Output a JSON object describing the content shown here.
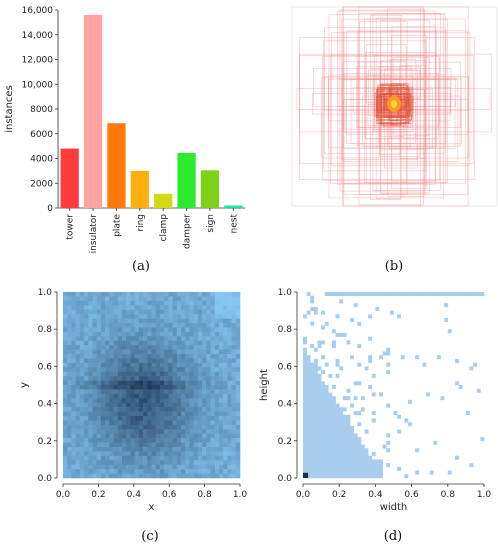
{
  "colors": {
    "bars": [
      "#ff3b3b",
      "#ffa3a3",
      "#ff7a0a",
      "#ffae0f",
      "#d4d817",
      "#2eea2e",
      "#7ed31a",
      "#17e6a0"
    ],
    "heatmap_light": "#84c6f2",
    "heatmap_dark": "#1f3a5a",
    "scatter_bins": "#a9cdee"
  },
  "chart_data": [
    {
      "panel": "a",
      "type": "bar",
      "categories": [
        "tower",
        "insulator",
        "plate",
        "ring",
        "clamp",
        "damper",
        "sign",
        "nest"
      ],
      "values": [
        4800,
        15600,
        6850,
        3000,
        1150,
        4450,
        3050,
        200
      ],
      "ylabel": "instances",
      "ylim": [
        0,
        16000
      ],
      "yticks": [
        "0",
        "2000",
        "4000",
        "6000",
        "8000",
        "10,000",
        "12,000",
        "14,000",
        "16,000"
      ],
      "yticks_values": [
        0,
        2000,
        4000,
        6000,
        8000,
        10000,
        12000,
        14000,
        16000
      ],
      "label": "(a)"
    },
    {
      "panel": "b",
      "type": "other",
      "description_free": true,
      "label": "(b)"
    },
    {
      "panel": "c",
      "type": "heatmap",
      "xlabel": "x",
      "ylabel": "y",
      "xlim": [
        0,
        1
      ],
      "ylim": [
        0,
        1
      ],
      "xticks": [
        "0.0",
        "0.2",
        "0.4",
        "0.6",
        "0.8",
        "1.0"
      ],
      "yticks": [
        "0.0",
        "0.2",
        "0.4",
        "0.6",
        "0.8",
        "1.0"
      ],
      "center": [
        0.45,
        0.42
      ],
      "label": "(c)"
    },
    {
      "panel": "d",
      "type": "heatmap",
      "xlabel": "width",
      "ylabel": "height",
      "xlim": [
        0,
        1
      ],
      "ylim": [
        0,
        1
      ],
      "xticks": [
        "0.0",
        "0.2",
        "0.4",
        "0.6",
        "0.8",
        "1.0"
      ],
      "yticks": [
        "0.0",
        "0.2",
        "0.4",
        "0.6",
        "0.8",
        "1.0"
      ],
      "label": "(d)"
    }
  ]
}
